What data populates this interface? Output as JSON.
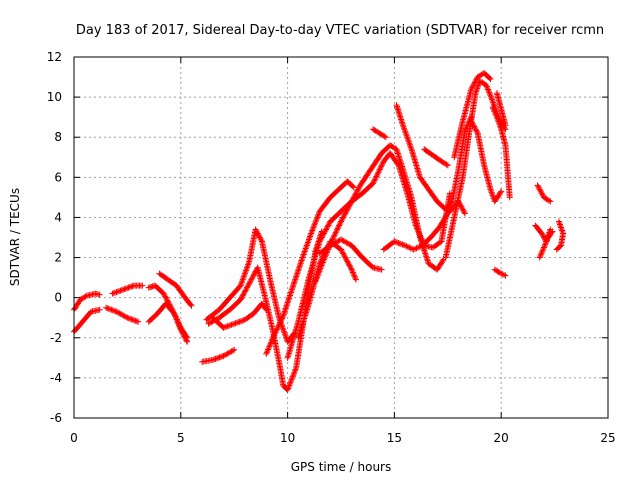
{
  "chart_data": {
    "type": "scatter",
    "title": "Day 183 of 2017, Sidereal Day-to-day VTEC variation (SDTVAR) for receiver rcmn",
    "xlabel": "GPS time / hours",
    "ylabel": "SDTVAR / TECUs",
    "xlim": [
      0,
      25
    ],
    "ylim": [
      -6,
      12
    ],
    "xticks": [
      "0",
      "5",
      "10",
      "15",
      "20",
      "25"
    ],
    "yticks": [
      "-6",
      "-4",
      "-2",
      "0",
      "2",
      "4",
      "6",
      "8",
      "10",
      "12"
    ],
    "grid": true,
    "marker": "+",
    "color": "#ff0000",
    "tracks": [
      [
        [
          0.0,
          -0.6
        ],
        [
          0.3,
          -0.1
        ],
        [
          0.6,
          0.1
        ],
        [
          1.0,
          0.2
        ],
        [
          1.2,
          0.15
        ]
      ],
      [
        [
          0.0,
          -1.7
        ],
        [
          0.4,
          -1.2
        ],
        [
          0.8,
          -0.7
        ],
        [
          1.2,
          -0.6
        ]
      ],
      [
        [
          1.5,
          -0.5
        ],
        [
          2.0,
          -0.7
        ],
        [
          2.5,
          -1.0
        ],
        [
          3.0,
          -1.2
        ]
      ],
      [
        [
          1.8,
          0.2
        ],
        [
          2.3,
          0.4
        ],
        [
          2.8,
          0.6
        ],
        [
          3.2,
          0.6
        ]
      ],
      [
        [
          3.5,
          0.5
        ],
        [
          3.8,
          0.6
        ],
        [
          4.2,
          0.2
        ],
        [
          4.6,
          -0.6
        ],
        [
          5.0,
          -1.5
        ],
        [
          5.3,
          -2.0
        ]
      ],
      [
        [
          3.5,
          -1.2
        ],
        [
          3.9,
          -0.8
        ],
        [
          4.3,
          -0.3
        ],
        [
          4.7,
          -0.8
        ],
        [
          5.0,
          -1.6
        ],
        [
          5.3,
          -2.2
        ]
      ],
      [
        [
          4.0,
          1.2
        ],
        [
          4.4,
          0.9
        ],
        [
          4.8,
          0.6
        ],
        [
          5.2,
          0.0
        ],
        [
          5.5,
          -0.4
        ]
      ],
      [
        [
          6.0,
          -3.2
        ],
        [
          6.5,
          -3.1
        ],
        [
          7.0,
          -2.9
        ],
        [
          7.5,
          -2.6
        ]
      ],
      [
        [
          6.2,
          -1.1
        ],
        [
          6.8,
          -0.6
        ],
        [
          7.3,
          0.0
        ],
        [
          7.8,
          0.6
        ],
        [
          8.2,
          1.8
        ],
        [
          8.5,
          3.4
        ],
        [
          8.8,
          2.8
        ],
        [
          9.2,
          0.8
        ],
        [
          9.6,
          -1.0
        ],
        [
          10.0,
          -2.2
        ],
        [
          10.3,
          -1.8
        ]
      ],
      [
        [
          6.3,
          -1.3
        ],
        [
          6.8,
          -1.0
        ],
        [
          7.3,
          -0.6
        ],
        [
          7.8,
          -0.1
        ],
        [
          8.3,
          0.9
        ],
        [
          8.6,
          1.5
        ],
        [
          9.0,
          -0.2
        ],
        [
          9.3,
          -1.6
        ],
        [
          9.6,
          -3.2
        ],
        [
          9.8,
          -4.4
        ],
        [
          10.0,
          -4.6
        ],
        [
          10.4,
          -3.5
        ],
        [
          10.7,
          -1.5
        ],
        [
          11.0,
          0.5
        ],
        [
          11.3,
          2.3
        ],
        [
          11.6,
          3.3
        ]
      ],
      [
        [
          6.5,
          -1.0
        ],
        [
          7.0,
          -1.5
        ],
        [
          7.5,
          -1.3
        ],
        [
          8.0,
          -1.1
        ],
        [
          8.4,
          -0.8
        ],
        [
          8.8,
          -0.3
        ],
        [
          9.0,
          -0.6
        ]
      ],
      [
        [
          9.0,
          -2.8
        ],
        [
          9.4,
          -1.8
        ],
        [
          9.8,
          -0.9
        ],
        [
          10.2,
          0.4
        ],
        [
          10.7,
          2.0
        ],
        [
          11.1,
          3.2
        ],
        [
          11.5,
          4.3
        ],
        [
          12.0,
          5.0
        ],
        [
          12.4,
          5.4
        ],
        [
          12.8,
          5.8
        ],
        [
          13.1,
          5.5
        ]
      ],
      [
        [
          10.0,
          -3.0
        ],
        [
          10.5,
          -1.2
        ],
        [
          11.0,
          1.0
        ],
        [
          11.5,
          2.8
        ],
        [
          12.0,
          3.8
        ],
        [
          12.5,
          4.3
        ],
        [
          13.0,
          4.8
        ],
        [
          13.5,
          5.2
        ],
        [
          14.0,
          5.7
        ],
        [
          14.5,
          6.8
        ],
        [
          14.8,
          7.2
        ],
        [
          15.2,
          6.6
        ],
        [
          15.6,
          5.2
        ],
        [
          16.0,
          3.6
        ],
        [
          16.4,
          2.6
        ],
        [
          16.8,
          2.5
        ],
        [
          17.2,
          2.8
        ],
        [
          17.6,
          5.2
        ]
      ],
      [
        [
          10.5,
          -2.0
        ],
        [
          11.0,
          -0.3
        ],
        [
          11.5,
          1.7
        ],
        [
          12.0,
          2.8
        ],
        [
          12.5,
          2.4
        ],
        [
          13.0,
          1.4
        ],
        [
          13.2,
          0.9
        ]
      ],
      [
        [
          11.5,
          2.2
        ],
        [
          12.0,
          2.6
        ],
        [
          12.5,
          2.9
        ],
        [
          13.0,
          2.6
        ],
        [
          13.5,
          2.0
        ],
        [
          14.0,
          1.5
        ],
        [
          14.4,
          1.4
        ]
      ],
      [
        [
          11.3,
          0.8
        ],
        [
          11.7,
          1.9
        ],
        [
          12.1,
          2.9
        ],
        [
          12.5,
          3.8
        ],
        [
          12.9,
          4.6
        ],
        [
          13.4,
          5.6
        ],
        [
          13.9,
          6.4
        ],
        [
          14.4,
          7.2
        ],
        [
          14.8,
          7.6
        ],
        [
          15.1,
          7.4
        ],
        [
          15.4,
          6.4
        ],
        [
          15.8,
          5.0
        ],
        [
          16.2,
          3.0
        ],
        [
          16.6,
          1.7
        ],
        [
          17.0,
          1.4
        ],
        [
          17.3,
          1.9
        ]
      ],
      [
        [
          14.0,
          8.4
        ],
        [
          14.3,
          8.2
        ],
        [
          14.6,
          8.0
        ]
      ],
      [
        [
          14.5,
          2.4
        ],
        [
          15.0,
          2.8
        ],
        [
          15.5,
          2.6
        ],
        [
          15.9,
          2.4
        ],
        [
          16.3,
          2.6
        ],
        [
          16.7,
          3.0
        ],
        [
          17.1,
          3.5
        ],
        [
          17.5,
          4.2
        ],
        [
          18.0,
          4.8
        ],
        [
          18.3,
          4.2
        ]
      ],
      [
        [
          15.1,
          9.6
        ],
        [
          15.4,
          8.6
        ],
        [
          15.8,
          7.4
        ],
        [
          16.2,
          6.0
        ],
        [
          16.6,
          5.4
        ],
        [
          17.0,
          4.8
        ],
        [
          17.4,
          4.4
        ],
        [
          17.7,
          4.8
        ],
        [
          18.0,
          6.4
        ],
        [
          18.3,
          8.3
        ],
        [
          18.6,
          9.0
        ]
      ],
      [
        [
          16.4,
          7.4
        ],
        [
          16.8,
          7.1
        ],
        [
          17.2,
          6.8
        ],
        [
          17.5,
          6.6
        ]
      ],
      [
        [
          17.4,
          2.0
        ],
        [
          17.8,
          4.0
        ],
        [
          18.2,
          6.0
        ],
        [
          18.5,
          8.2
        ],
        [
          18.8,
          10.2
        ],
        [
          19.0,
          10.8
        ],
        [
          19.3,
          10.6
        ],
        [
          19.6,
          9.8
        ],
        [
          19.9,
          8.9
        ],
        [
          20.2,
          8.4
        ]
      ],
      [
        [
          17.8,
          7.0
        ],
        [
          18.2,
          8.8
        ],
        [
          18.6,
          10.4
        ],
        [
          18.9,
          11.0
        ],
        [
          19.2,
          11.2
        ],
        [
          19.5,
          10.9
        ]
      ],
      [
        [
          18.6,
          8.8
        ],
        [
          18.9,
          8.2
        ],
        [
          19.2,
          6.6
        ],
        [
          19.5,
          5.4
        ],
        [
          19.7,
          4.8
        ],
        [
          20.0,
          5.3
        ]
      ],
      [
        [
          19.6,
          9.5
        ],
        [
          19.8,
          9.0
        ],
        [
          20.0,
          8.4
        ],
        [
          20.2,
          7.6
        ],
        [
          20.4,
          5.0
        ]
      ],
      [
        [
          19.8,
          10.2
        ],
        [
          20.0,
          9.4
        ],
        [
          20.2,
          8.6
        ]
      ],
      [
        [
          19.7,
          1.4
        ],
        [
          20.0,
          1.2
        ],
        [
          20.2,
          1.1
        ]
      ],
      [
        [
          21.6,
          3.6
        ],
        [
          21.9,
          3.2
        ],
        [
          22.1,
          2.8
        ],
        [
          22.3,
          3.4
        ]
      ],
      [
        [
          21.8,
          2.0
        ],
        [
          22.2,
          3.0
        ],
        [
          22.4,
          3.3
        ]
      ],
      [
        [
          21.7,
          5.6
        ],
        [
          22.0,
          5.0
        ],
        [
          22.3,
          4.8
        ]
      ],
      [
        [
          22.7,
          3.8
        ],
        [
          22.9,
          3.2
        ],
        [
          22.8,
          2.6
        ],
        [
          22.6,
          2.4
        ]
      ]
    ]
  }
}
